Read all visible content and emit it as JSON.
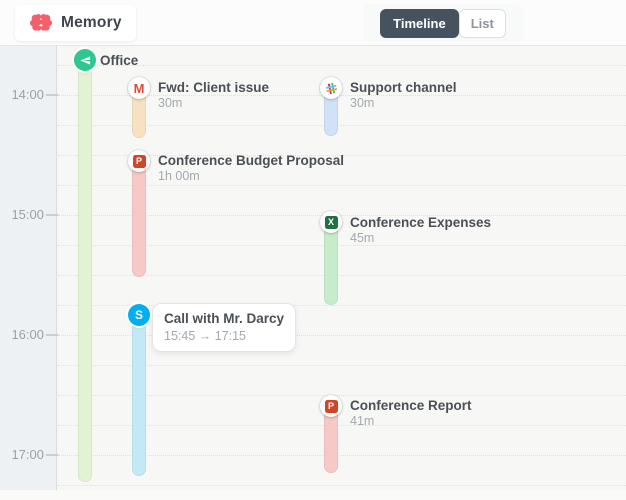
{
  "colors": {
    "brand": "#f2606b",
    "toggle_active": "#46525e",
    "office_green": "#2fc78e",
    "skype_blue": "#00aff0",
    "gmail_red": "#dd4b39",
    "powerpoint_orange": "#d04727",
    "excel_green": "#1f7145",
    "bar_office": "#e2f3d3",
    "bar_gmail": "#f6e2c2",
    "bar_powerpoint": "#f6c9c7",
    "bar_excel": "#c6ecca",
    "bar_skype": "#c3e9f5",
    "bar_slack": "#cfe2f7"
  },
  "header": {
    "app_title": "Memory",
    "toggle": {
      "timeline": "Timeline",
      "list": "List"
    }
  },
  "axis": {
    "hours": [
      "14:00",
      "15:00",
      "16:00",
      "17:00"
    ]
  },
  "events": {
    "office": {
      "title": "Office",
      "icon": "send-icon"
    },
    "client_issue": {
      "title": "Fwd: Client issue",
      "duration": "30m",
      "icon": "gmail-icon",
      "glyph": "M"
    },
    "support_channel": {
      "title": "Support channel",
      "duration": "30m",
      "icon": "slack-icon"
    },
    "budget_proposal": {
      "title": "Conference Budget Proposal",
      "duration": "1h 00m",
      "icon": "powerpoint-icon",
      "glyph": "P"
    },
    "conference_expenses": {
      "title": "Conference Expenses",
      "duration": "45m",
      "icon": "excel-icon",
      "glyph": "X"
    },
    "darcy_call": {
      "title": "Call with Mr. Darcy",
      "time_range": "15:45 → 17:15",
      "icon": "skype-icon",
      "glyph": "S"
    },
    "conference_report": {
      "title": "Conference Report",
      "duration": "41m",
      "icon": "powerpoint-icon",
      "glyph": "P"
    }
  }
}
